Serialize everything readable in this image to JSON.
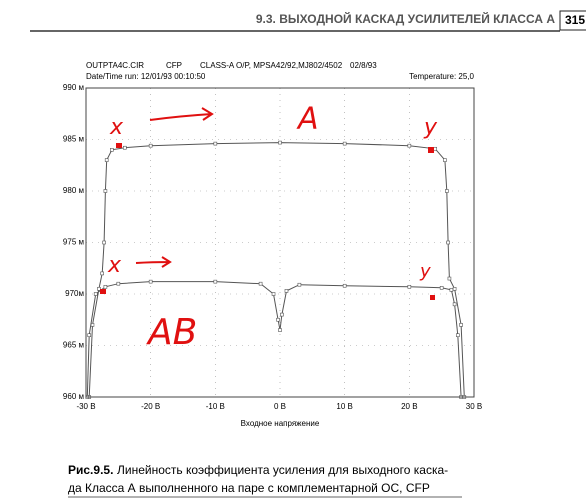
{
  "page_header": {
    "section_title": "9.3. ВЫХОДНОЙ КАСКАД УСИЛИТЕЛЕЙ КЛАССА А",
    "page_number": "315"
  },
  "chart_data": {
    "type": "line",
    "file": "OUTPTA4C.CIR",
    "mode": "CFP",
    "description": "CLASS-A O/P, MPSA42/92,MJ802/4502",
    "date": "02/8/93",
    "run": "Date/Time run: 12/01/93 00:10:50",
    "temperature": "Temperature: 25,0",
    "x_label": "Входное напряжение",
    "xlim": [
      -30,
      30
    ],
    "xticks": [
      {
        "value": -30,
        "label": "-30 В"
      },
      {
        "value": -20,
        "label": "-20 В"
      },
      {
        "value": -10,
        "label": "-10 В"
      },
      {
        "value": 0,
        "label": "0 В"
      },
      {
        "value": 10,
        "label": "10 В"
      },
      {
        "value": 20,
        "label": "20 В"
      },
      {
        "value": 30,
        "label": "30 В"
      }
    ],
    "ylim": [
      960,
      990
    ],
    "yticks": [
      {
        "value": 960,
        "label": "960 м"
      },
      {
        "value": 965,
        "label": "965 м"
      },
      {
        "value": 970,
        "label": "970м"
      },
      {
        "value": 975,
        "label": "975 м"
      },
      {
        "value": 980,
        "label": "980 м"
      },
      {
        "value": 985,
        "label": "985 м"
      },
      {
        "value": 990,
        "label": "990 м"
      }
    ],
    "grid": true,
    "series": [
      {
        "color": "#555555",
        "x": [
          -29.5,
          -29,
          -28,
          -27.5,
          -27.2,
          -27,
          -26.8,
          -26,
          -24,
          -20,
          -10,
          0,
          10,
          20,
          24,
          25.5,
          25.8,
          26,
          26.2,
          27,
          28,
          28.5
        ],
        "values": [
          960,
          967,
          970.5,
          972,
          975,
          980,
          983,
          984,
          984.2,
          984.4,
          984.6,
          984.7,
          984.6,
          984.4,
          984.1,
          983,
          980,
          975,
          971.5,
          970.5,
          967,
          960
        ]
      },
      {
        "color": "#555555",
        "x": [
          -29.8,
          -29.5,
          -28.5,
          -27,
          -25,
          -20,
          -10,
          -3,
          -1,
          -0.3,
          0,
          0.3,
          1,
          3,
          10,
          20,
          25,
          26.5,
          27,
          27.5,
          28
        ],
        "values": [
          960,
          966,
          970,
          970.7,
          971,
          971.2,
          971.2,
          971,
          970,
          967.5,
          966.5,
          968,
          970.3,
          970.9,
          970.8,
          970.7,
          970.6,
          970.4,
          969,
          966,
          960
        ]
      }
    ],
    "annotations": [
      "x",
      "A",
      "y",
      "x",
      "y",
      "AB"
    ]
  },
  "caption": {
    "label": "Рис.9.5.",
    "lines": [
      "Линейность коэффициента усиления для выходного каска-",
      "да Класса А выполненного на паре с комплементарной ОС, CFP"
    ]
  }
}
